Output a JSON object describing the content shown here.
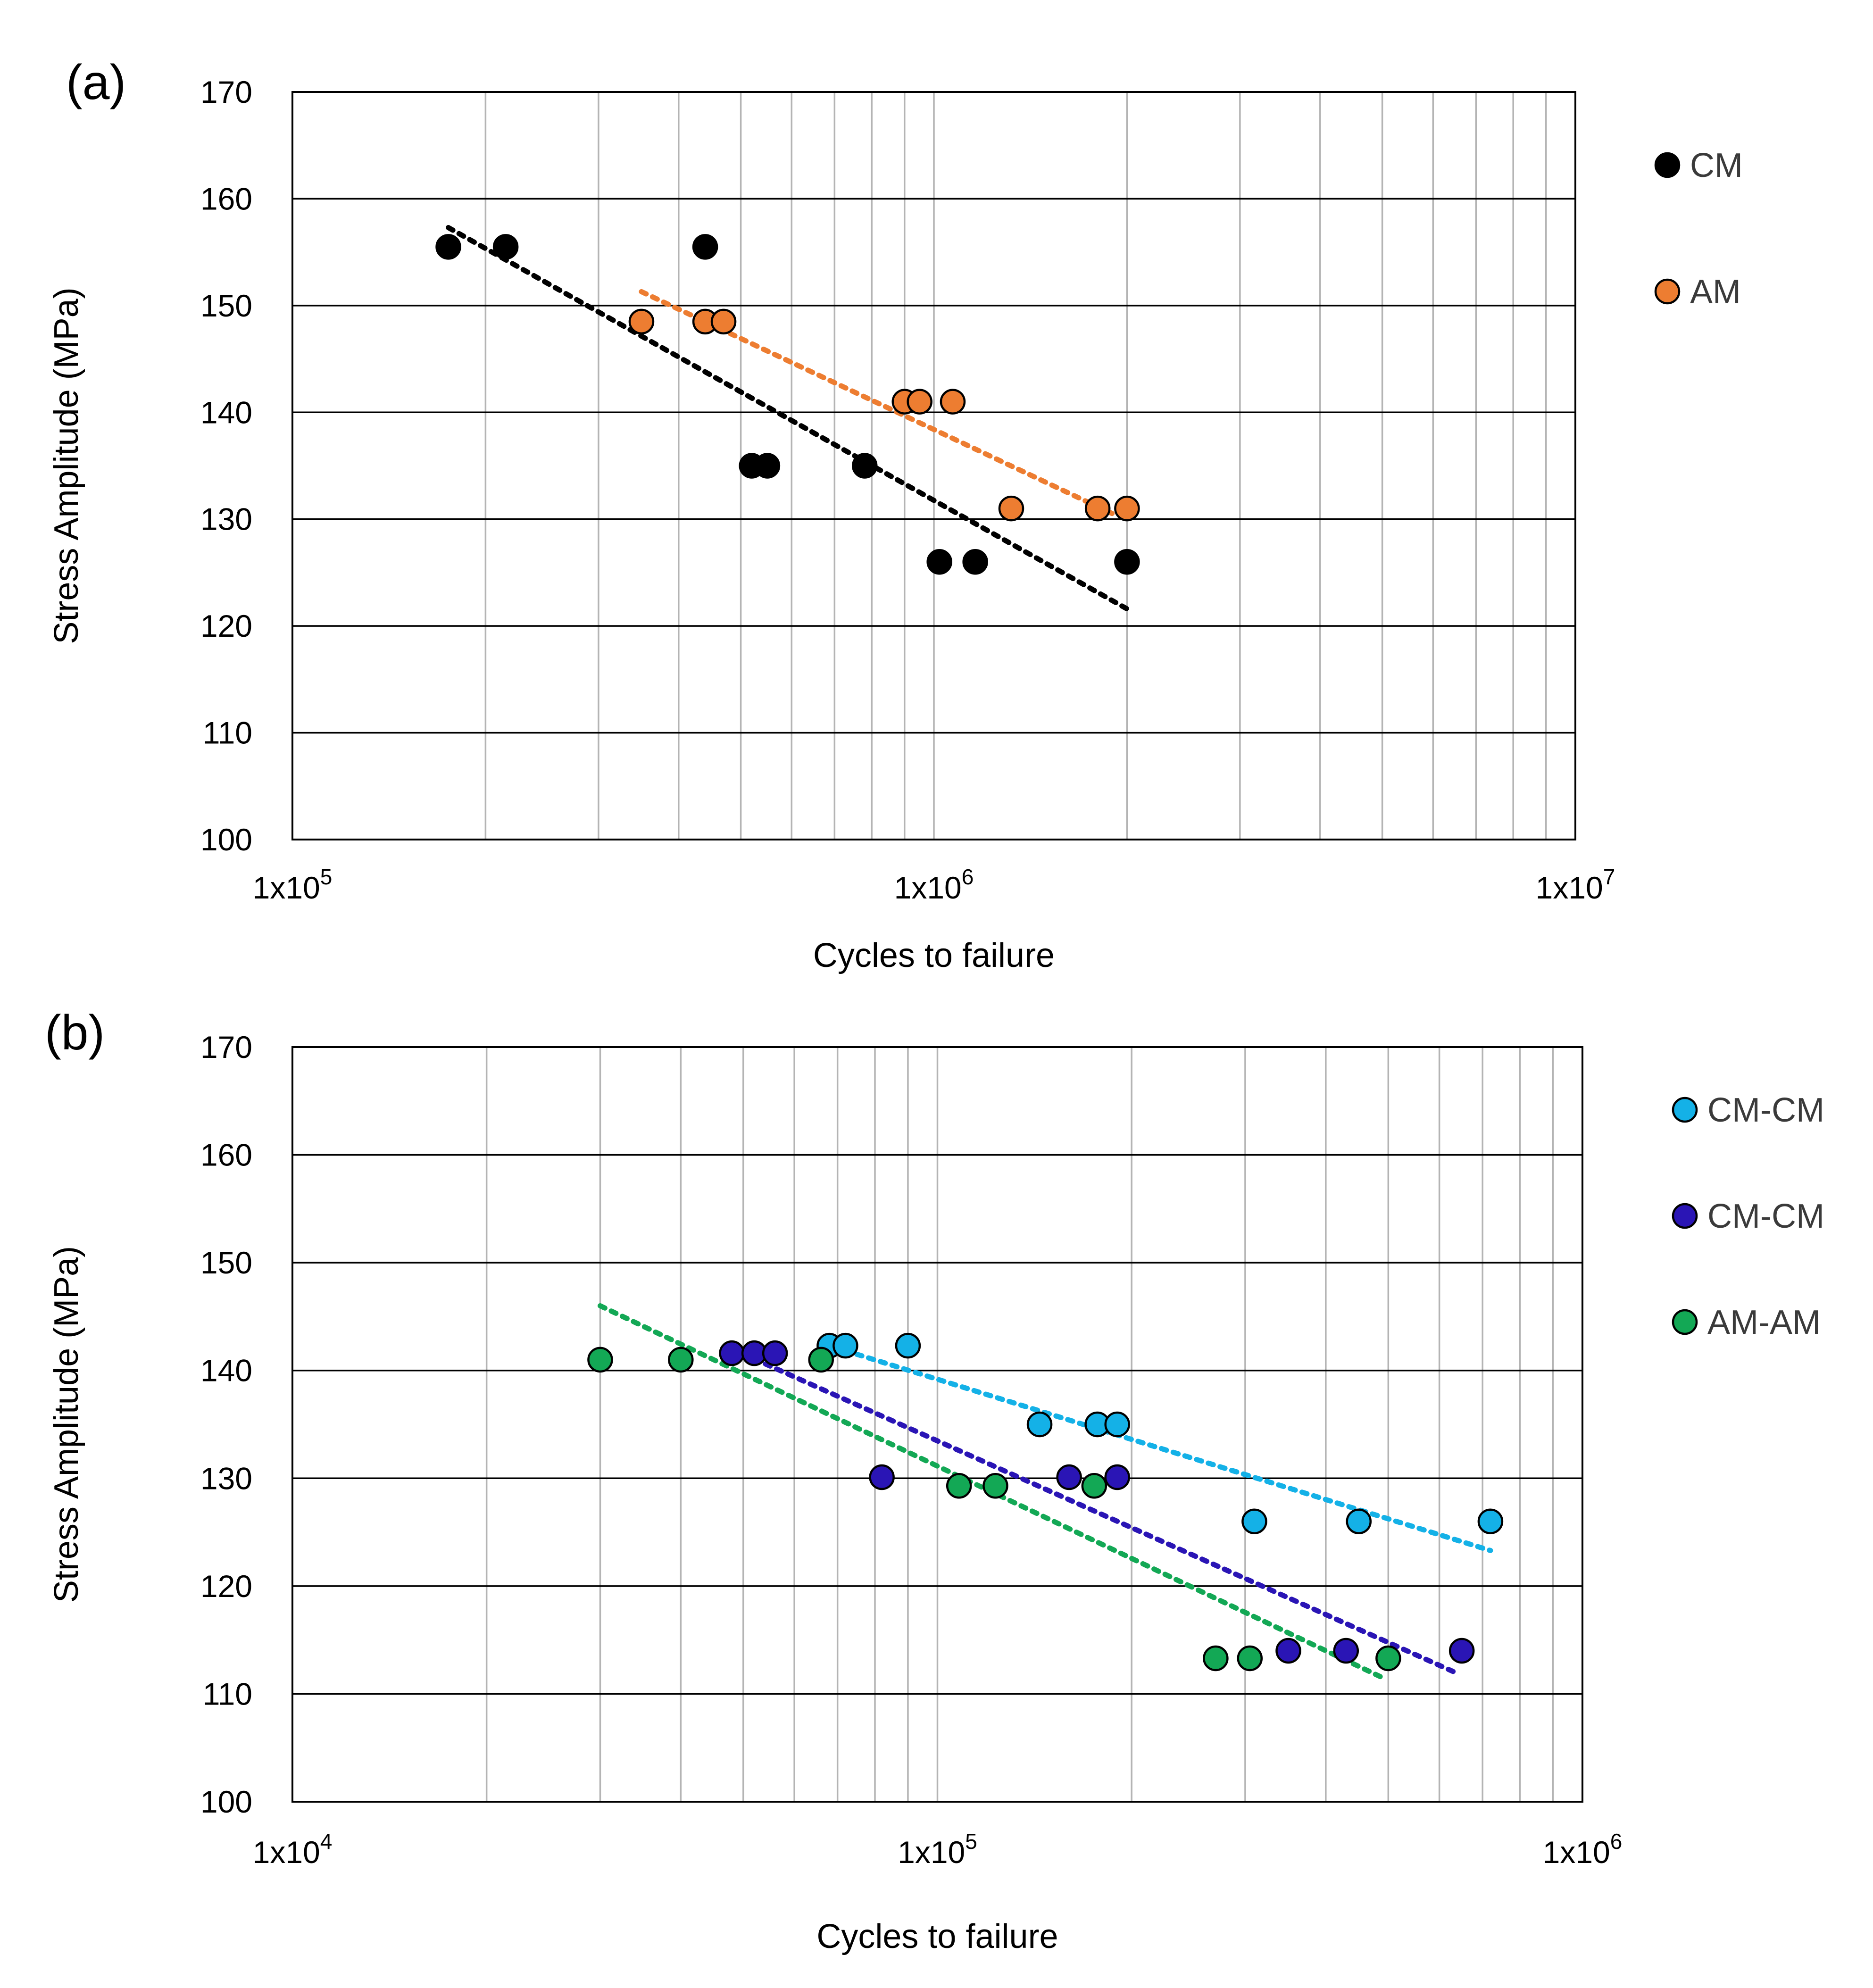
{
  "chart_data": [
    {
      "type": "scatter",
      "panel_label": "(a)",
      "xlabel": "Cycles to failure",
      "ylabel": "Stress Amplitude (MPa)",
      "x_scale": "log",
      "xlim": [
        100000,
        10000000
      ],
      "ylim": [
        100,
        170
      ],
      "x_ticks": [
        {
          "value": 100000,
          "label_base": "1x10",
          "label_exp": "5"
        },
        {
          "value": 1000000,
          "label_base": "1x10",
          "label_exp": "6"
        },
        {
          "value": 10000000,
          "label_base": "1x10",
          "label_exp": "7"
        }
      ],
      "y_ticks": [
        100,
        110,
        120,
        130,
        140,
        150,
        160,
        170
      ],
      "grid": true,
      "legend_position": "right",
      "series": [
        {
          "name": "CM",
          "color": "#000000",
          "points": [
            [
              175000,
              155.5
            ],
            [
              215000,
              155.5
            ],
            [
              440000,
              155.5
            ],
            [
              520000,
              135
            ],
            [
              550000,
              135
            ],
            [
              780000,
              135
            ],
            [
              1020000,
              126
            ],
            [
              1160000,
              126
            ],
            [
              2000000,
              126
            ]
          ],
          "trendline": [
            [
              175000,
              157.3
            ],
            [
              2000000,
              121.6
            ]
          ]
        },
        {
          "name": "AM",
          "color": "#ed7d31",
          "points": [
            [
              350000,
              148.5
            ],
            [
              440000,
              148.5
            ],
            [
              470000,
              148.5
            ],
            [
              900000,
              141
            ],
            [
              950000,
              141
            ],
            [
              1070000,
              141
            ],
            [
              1320000,
              131
            ],
            [
              1800000,
              131
            ],
            [
              2000000,
              131
            ]
          ],
          "trendline": [
            [
              350000,
              151.3
            ],
            [
              1900000,
              130.5
            ]
          ]
        }
      ]
    },
    {
      "type": "scatter",
      "panel_label": "(b)",
      "xlabel": "Cycles to failure",
      "ylabel": "Stress Amplitude (MPa)",
      "x_scale": "log",
      "xlim": [
        10000,
        1000000
      ],
      "ylim": [
        100,
        170
      ],
      "x_ticks": [
        {
          "value": 10000,
          "label_base": "1x10",
          "label_exp": "4"
        },
        {
          "value": 100000,
          "label_base": "1x10",
          "label_exp": "5"
        },
        {
          "value": 1000000,
          "label_base": "1x10",
          "label_exp": "6"
        }
      ],
      "y_ticks": [
        100,
        110,
        120,
        130,
        140,
        150,
        160,
        170
      ],
      "grid": true,
      "legend_position": "right",
      "series": [
        {
          "name": "CM-CM",
          "color": "#14b1e7",
          "points": [
            [
              68000,
              142.3
            ],
            [
              72000,
              142.3
            ],
            [
              90000,
              142.3
            ],
            [
              144000,
              135
            ],
            [
              177000,
              135
            ],
            [
              190000,
              135
            ],
            [
              310000,
              126
            ],
            [
              450000,
              126
            ],
            [
              720000,
              126
            ]
          ],
          "trendline": [
            [
              75000,
              141.5
            ],
            [
              720000,
              123.3
            ]
          ]
        },
        {
          "name": "CM-CM",
          "color": "#2a15b5",
          "points": [
            [
              48000,
              141.6
            ],
            [
              52000,
              141.6
            ],
            [
              56000,
              141.6
            ],
            [
              82000,
              130.1
            ],
            [
              160000,
              130.1
            ],
            [
              190000,
              130.1
            ],
            [
              350000,
              114
            ],
            [
              430000,
              114
            ],
            [
              650000,
              114
            ]
          ],
          "trendline": [
            [
              48000,
              142
            ],
            [
              640000,
              111.9
            ]
          ]
        },
        {
          "name": "AM-AM",
          "color": "#13a855",
          "points": [
            [
              30000,
              141
            ],
            [
              40000,
              141
            ],
            [
              66000,
              141
            ],
            [
              108000,
              129.3
            ],
            [
              123000,
              129.3
            ],
            [
              175000,
              129.3
            ],
            [
              270000,
              113.3
            ],
            [
              305000,
              113.3
            ],
            [
              500000,
              113.3
            ]
          ],
          "trendline": [
            [
              30000,
              146
            ],
            [
              490000,
              111.5
            ]
          ]
        }
      ]
    }
  ]
}
